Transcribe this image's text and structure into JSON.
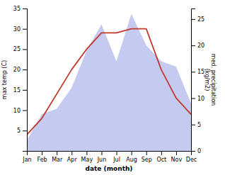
{
  "chart_data": {
    "type": "line",
    "categories": [
      "Jan",
      "Feb",
      "Mar",
      "Apr",
      "May",
      "Jun",
      "Jul",
      "Aug",
      "Sep",
      "Oct",
      "Nov",
      "Dec"
    ],
    "xlabel": "date (month)",
    "ylabel": "max temp (C)",
    "y2label": "med. precipitation\n(kg/m2)",
    "ylim": [
      0,
      35
    ],
    "yticks": [
      5,
      10,
      15,
      20,
      25,
      30,
      35
    ],
    "y2lim": [
      0,
      27
    ],
    "y2ticks": [
      0,
      5,
      10,
      15,
      20,
      25
    ],
    "series": [
      {
        "type": "area",
        "axis": "y2",
        "color": "#c5caf0",
        "values": [
          2,
          7,
          8,
          12,
          19,
          24,
          17,
          26,
          20,
          17,
          16,
          9
        ]
      },
      {
        "type": "line",
        "color": "#c0392b",
        "values": [
          4,
          8,
          14,
          20,
          25,
          29,
          29,
          30,
          30,
          20,
          13,
          9
        ]
      }
    ]
  }
}
